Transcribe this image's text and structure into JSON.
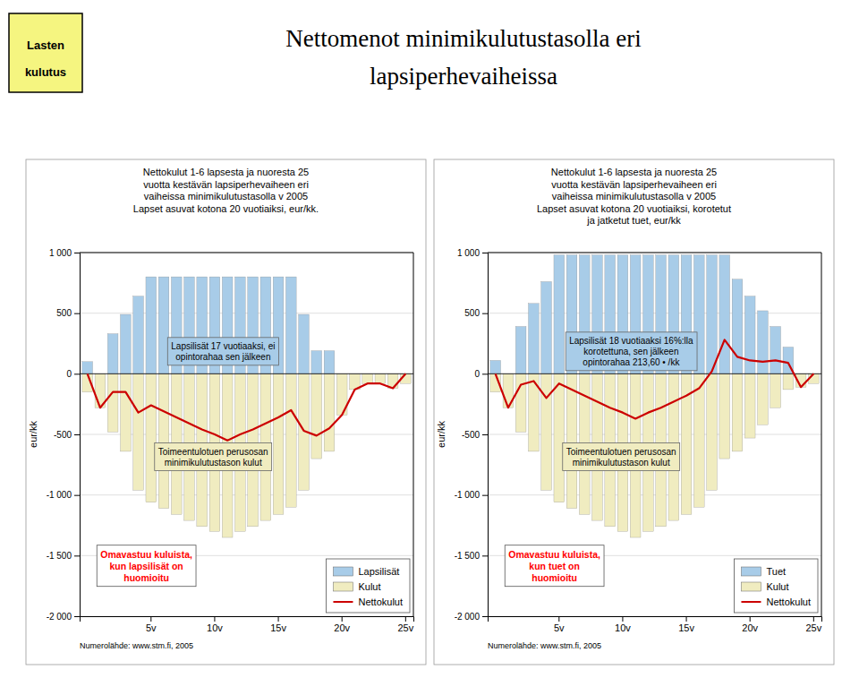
{
  "title": "Nettomenot minimikulutustasolla eri\nlapsiperhevaiheissa",
  "annotations": [
    {
      "text": "Lasten\nkulutus",
      "color": "#f5f580"
    }
  ],
  "chart_data": [
    {
      "type": "bar",
      "subtitle": "Nettokulut 1-6 lapsesta ja nuoresta 25\nvuotta kestävän lapsiperhevaiheen eri\nvaiheissa minimikulutustasolla v 2005\nLapset asuvat kotona 20 vuotiaiksi, eur/kk.",
      "ylabel": "eur/kk",
      "categories": [
        null,
        null,
        null,
        null,
        null,
        "5v",
        null,
        null,
        null,
        null,
        "10v",
        null,
        null,
        null,
        null,
        "15v",
        null,
        null,
        null,
        null,
        "20v",
        null,
        null,
        null,
        null,
        "25v"
      ],
      "series": [
        {
          "name": "Lapsilisät",
          "type": "bar",
          "color": "#a8cce8",
          "values": [
            100,
            0,
            330,
            490,
            640,
            800,
            800,
            800,
            800,
            800,
            800,
            800,
            800,
            800,
            800,
            800,
            800,
            490,
            190,
            190,
            0,
            0,
            0,
            0,
            0,
            0
          ]
        },
        {
          "name": "Kulut",
          "type": "bar",
          "color": "#f0ecc0",
          "values": [
            -150,
            -280,
            -480,
            -640,
            -960,
            -1060,
            -1110,
            -1160,
            -1210,
            -1260,
            -1300,
            -1350,
            -1300,
            -1260,
            -1210,
            -1160,
            -1100,
            -960,
            -700,
            -640,
            -340,
            -130,
            -80,
            -80,
            -120,
            -80
          ]
        },
        {
          "name": "Nettokulut",
          "type": "line",
          "color": "#cc0000",
          "values": [
            0,
            -280,
            -150,
            -150,
            -320,
            -260,
            -310,
            -360,
            -410,
            -460,
            -500,
            -550,
            -500,
            -460,
            -410,
            -360,
            -300,
            -470,
            -510,
            -450,
            -340,
            -130,
            -80,
            -80,
            -120,
            0
          ]
        }
      ],
      "ylim": [
        -2000,
        1000
      ],
      "yticks": [
        {
          "value": -2000,
          "label": "-2 000"
        },
        {
          "value": -1500,
          "label": "-1 500"
        },
        {
          "value": -1000,
          "label": "-1 000"
        },
        -500,
        0,
        500,
        {
          "value": 1000,
          "label": "1 000"
        }
      ],
      "grid": true,
      "legend": "lower right",
      "annotations": [
        "Lapsilisät 17 vuotiaaksi, ei\nopintorahaa sen jälkeen",
        "Toimeentulotuen perusosan\nminimikulutustason kulut",
        "Omavastuu kuluista,\nkun lapsilisät on\nhuomioitu",
        "Numerolähde: www.stm.fi, 2005"
      ]
    },
    {
      "type": "bar",
      "subtitle": "Nettokulut 1-6 lapsesta ja nuoresta 25\nvuotta kestävän lapsiperhevaiheen eri\nvaiheissa minimikulutustasolla v 2005\nLapset asuvat kotona 20 vuotiaiksi, korotetut\nja jatketut tuet, eur/kk",
      "ylabel": "eur/kk",
      "categories": [
        null,
        null,
        null,
        null,
        null,
        "5v",
        null,
        null,
        null,
        null,
        "10v",
        null,
        null,
        null,
        null,
        "15v",
        null,
        null,
        null,
        null,
        "20v",
        null,
        null,
        null,
        null,
        "25v"
      ],
      "series": [
        {
          "name": "Tuet",
          "type": "bar",
          "color": "#a8cce8",
          "values": [
            110,
            0,
            390,
            580,
            760,
            980,
            980,
            980,
            980,
            980,
            980,
            980,
            980,
            980,
            980,
            980,
            980,
            980,
            980,
            780,
            640,
            520,
            390,
            220,
            0,
            0
          ]
        },
        {
          "name": "Kulut",
          "type": "bar",
          "color": "#f0ecc0",
          "values": [
            -150,
            -280,
            -480,
            -640,
            -960,
            -1060,
            -1110,
            -1160,
            -1210,
            -1260,
            -1300,
            -1350,
            -1300,
            -1260,
            -1210,
            -1160,
            -1100,
            -960,
            -700,
            -640,
            -530,
            -420,
            -280,
            -130,
            -110,
            -80
          ]
        },
        {
          "name": "Nettokulut",
          "type": "line",
          "color": "#cc0000",
          "values": [
            0,
            -280,
            -90,
            -60,
            -200,
            -80,
            -130,
            -180,
            -230,
            -280,
            -320,
            -370,
            -320,
            -280,
            -230,
            -180,
            -120,
            20,
            280,
            140,
            110,
            100,
            110,
            90,
            -110,
            0
          ]
        }
      ],
      "ylim": [
        -2000,
        1000
      ],
      "yticks": [
        {
          "value": -2000,
          "label": "-2 000"
        },
        {
          "value": -1500,
          "label": "-1 500"
        },
        {
          "value": -1000,
          "label": "-1 000"
        },
        -500,
        0,
        500,
        {
          "value": 1000,
          "label": "1 000"
        }
      ],
      "grid": true,
      "legend": "lower right",
      "annotations": [
        "Lapsilisät 18 vuotiaaksi 16%:lla\nkorotettuna, sen jälkeen\nopintorahaa 213,60 • /kk",
        "Toimeentulotuen perusosan\nminimikulutustason kulut",
        "Omavastuu kuluista,\nkun tuet on\nhuomioitu",
        "Numerolähde: www.stm.fi, 2005"
      ]
    }
  ]
}
